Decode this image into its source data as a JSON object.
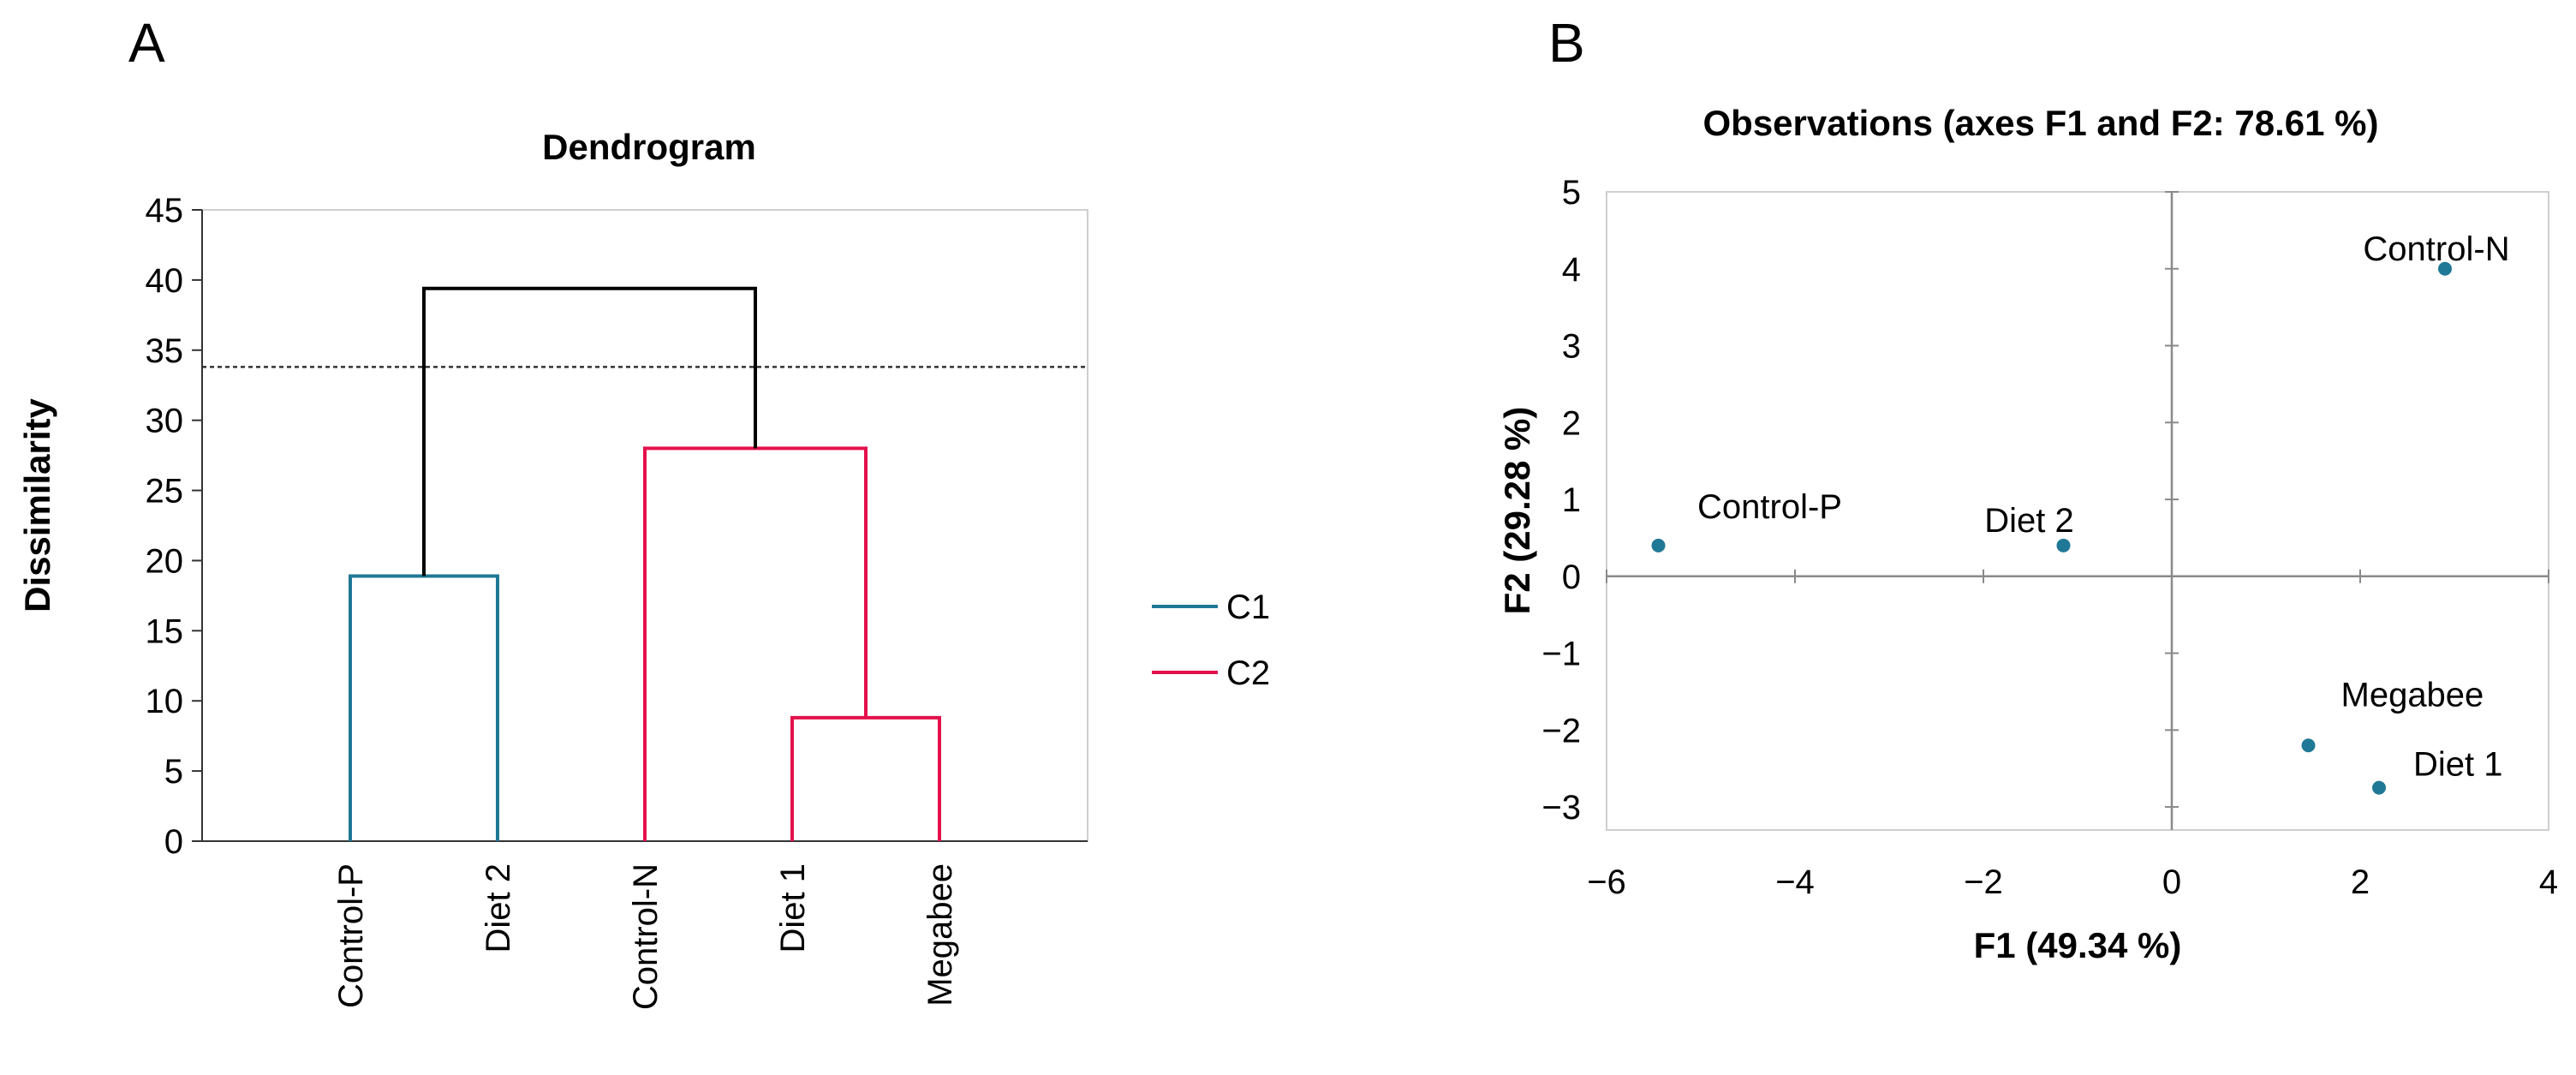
{
  "panels": {
    "a_letter": "A",
    "b_letter": "B"
  },
  "chart_data": [
    {
      "type": "dendrogram",
      "title": "Dendrogram",
      "ylabel": "Dissimilarity",
      "xlabel": "",
      "ylim": [
        0,
        45
      ],
      "yticks": [
        0,
        5,
        10,
        15,
        20,
        25,
        30,
        35,
        40,
        45
      ],
      "leaves": [
        "Control-P",
        "Diet 2",
        "Control-N",
        "Diet 1",
        "Megabee"
      ],
      "cut_height": 33.8,
      "merges": [
        {
          "left": "Diet 1",
          "right": "Megabee",
          "height": 8.8,
          "cluster": "C2"
        },
        {
          "left": "Control-P",
          "right": "Diet 2",
          "height": 18.9,
          "cluster": "C1"
        },
        {
          "left": "Control-N",
          "right": "Diet 1 + Megabee",
          "height": 28.0,
          "cluster": "C2"
        },
        {
          "left": "C1",
          "right": "C2",
          "height": 39.4,
          "cluster": "root"
        }
      ],
      "legend": [
        {
          "name": "C1",
          "color": "#1f7896"
        },
        {
          "name": "C2",
          "color": "#e3104c"
        }
      ],
      "root_color": "#000000"
    },
    {
      "type": "scatter",
      "title": "Observations (axes F1 and F2: 78.61 %)",
      "xlabel": "F1 (49.34 %)",
      "ylabel": "F2 (29.28 %)",
      "xlim": [
        -6,
        4
      ],
      "ylim": [
        -3.3,
        5
      ],
      "xticks": [
        -6,
        -4,
        -2,
        0,
        2,
        4
      ],
      "yticks": [
        -3,
        -2,
        -1,
        0,
        1,
        2,
        3,
        4,
        5
      ],
      "xtick_labels": [
        "−6",
        "−4",
        "−2",
        "0",
        "2",
        "4"
      ],
      "ytick_labels": [
        "−3",
        "−2",
        "−1",
        "0",
        "1",
        "2",
        "3",
        "4",
        "5"
      ],
      "point_color": "#1f7896",
      "points": [
        {
          "label": "Control-N",
          "x": 2.9,
          "y": 4.0
        },
        {
          "label": "Control-P",
          "x": -5.45,
          "y": 0.4
        },
        {
          "label": "Diet 2",
          "x": -1.15,
          "y": 0.4
        },
        {
          "label": "Megabee",
          "x": 1.45,
          "y": -2.2
        },
        {
          "label": "Diet 1",
          "x": 2.2,
          "y": -2.75
        }
      ]
    }
  ]
}
